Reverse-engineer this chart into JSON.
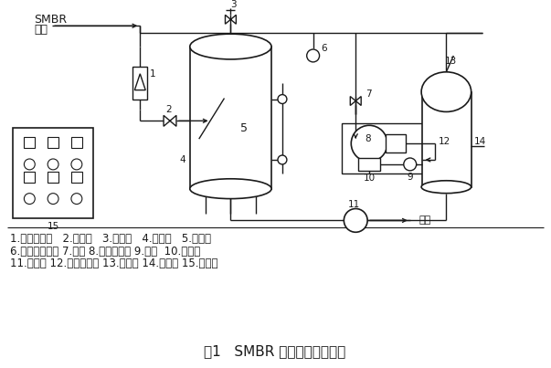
{
  "title": "图1   SMBR 真空抓水自控系统",
  "legend_lines": [
    "1.转子流量计   2.进水阀   3.放气阀   4.真空罐   5.液位计",
    "6.电接点压力表 7.闸阀 8.水环真空泵 9.球阀  10.过滤器",
    "11.出水泵 12.气水分离器 13.排气口 14.放水口 15.电控柜"
  ],
  "bg_color": "#ffffff",
  "line_color": "#1a1a1a",
  "title_fontsize": 11,
  "legend_fontsize": 8.5
}
